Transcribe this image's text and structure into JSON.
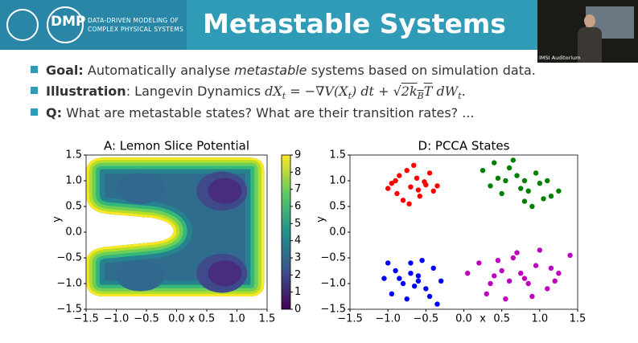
{
  "header": {
    "logo": "DMP",
    "subtitle_lines": [
      "DATA-DRIVEN MODELING OF",
      "COMPLEX PHYSICAL SYSTEMS"
    ],
    "title": "Metastable Systems"
  },
  "webcam": {
    "label": "IMSI Auditorium"
  },
  "bullets": [
    {
      "parts": [
        {
          "text": "Goal:",
          "style": "bold"
        },
        {
          "text": " Automatically analyse ",
          "style": "normal"
        },
        {
          "text": "metastable",
          "style": "italic"
        },
        {
          "text": " systems based on simulation data.",
          "style": "normal"
        }
      ]
    },
    {
      "parts": [
        {
          "text": "Illustration",
          "style": "bold"
        },
        {
          "text": ": Langevin Dynamics ",
          "style": "normal"
        },
        {
          "text": "dX",
          "style": "math"
        },
        {
          "text": "t",
          "style": "sub"
        },
        {
          "text": " = −∇V(X",
          "style": "math"
        },
        {
          "text": "t",
          "style": "sub"
        },
        {
          "text": ") dt + √",
          "style": "math"
        },
        {
          "text": "2k",
          "style": "math-over"
        },
        {
          "text": "B",
          "style": "sub-over"
        },
        {
          "text": "T",
          "style": "math-over"
        },
        {
          "text": " dW",
          "style": "math"
        },
        {
          "text": "t",
          "style": "sub"
        },
        {
          "text": ".",
          "style": "math"
        }
      ]
    },
    {
      "parts": [
        {
          "text": "Q:",
          "style": "bold"
        },
        {
          "text": " What are metastable states? What are their transition rates? ...",
          "style": "normal"
        }
      ]
    }
  ],
  "chart_data": [
    {
      "type": "contour",
      "title": "A: Lemon Slice Potential",
      "xlabel": "x",
      "ylabel": "y",
      "colormap": "viridis",
      "xlim": [
        -1.5,
        1.5
      ],
      "ylim": [
        -1.5,
        1.5
      ],
      "xticks": [
        {
          "value": -1.5,
          "label": "−1.5"
        },
        {
          "value": -1.0,
          "label": "−1.0"
        },
        {
          "value": -0.5,
          "label": "−0.5"
        },
        {
          "value": 0,
          "label": "0.0"
        },
        0.5,
        {
          "value": 1.0,
          "label": "1.0"
        },
        1.5
      ],
      "yticks": [
        {
          "value": -1.5,
          "label": "−1.5"
        },
        {
          "value": -1.0,
          "label": "−1.0"
        },
        {
          "value": -0.5,
          "label": "−0.5"
        },
        {
          "value": 0,
          "label": "0.0"
        },
        0.5,
        {
          "value": 1.0,
          "label": "1.0"
        },
        1.5
      ],
      "colorbar": {
        "lim": [
          0,
          9
        ],
        "ticks": [
          0,
          1,
          2,
          3,
          4,
          5,
          6,
          7,
          8,
          9
        ]
      }
    },
    {
      "type": "scatter",
      "title": "D: PCCA States",
      "xlabel": "x",
      "ylabel": "y",
      "xlim": [
        -1.5,
        1.5
      ],
      "ylim": [
        -1.5,
        1.5
      ],
      "xticks": [
        {
          "value": -1.5,
          "label": "−1.5"
        },
        {
          "value": -1.0,
          "label": "−1.0"
        },
        {
          "value": -0.5,
          "label": "−0.5"
        },
        {
          "value": 0,
          "label": "0.0"
        },
        0.5,
        {
          "value": 1.0,
          "label": "1.0"
        },
        1.5
      ],
      "yticks": [
        {
          "value": -1.5,
          "label": "−1.5"
        },
        {
          "value": -1.0,
          "label": "−1.0"
        },
        {
          "value": -0.5,
          "label": "−0.5"
        },
        {
          "value": 0,
          "label": "0.0"
        },
        0.5,
        {
          "value": 1.0,
          "label": "1.0"
        },
        1.5
      ],
      "series": [
        {
          "color": "#ff0000",
          "x": [
            -0.95,
            -0.85,
            -0.75,
            -0.62,
            -0.5,
            -0.4,
            -0.88,
            -0.7,
            -0.58,
            -0.45,
            -1.0,
            -0.8,
            -0.66,
            -0.52,
            -0.35,
            -0.72,
            -0.9,
            -0.6
          ],
          "y": [
            0.95,
            1.1,
            1.2,
            1.05,
            0.92,
            0.8,
            0.75,
            0.88,
            0.7,
            1.15,
            0.85,
            0.62,
            1.3,
            0.98,
            0.9,
            0.55,
            1.0,
            0.82
          ]
        },
        {
          "color": "#008000",
          "x": [
            0.25,
            0.4,
            0.55,
            0.7,
            0.85,
            1.0,
            1.15,
            0.35,
            0.6,
            0.8,
            0.95,
            1.1,
            0.5,
            0.75,
            0.9,
            1.25,
            0.65,
            0.45,
            1.05,
            0.8
          ],
          "y": [
            1.2,
            1.35,
            1.0,
            1.1,
            0.8,
            0.95,
            0.7,
            0.9,
            1.25,
            0.6,
            1.15,
            1.0,
            0.75,
            0.85,
            0.5,
            0.8,
            1.4,
            1.05,
            0.65,
            1.0
          ]
        },
        {
          "color": "#0000ff",
          "x": [
            -1.05,
            -0.9,
            -0.8,
            -0.7,
            -0.6,
            -0.5,
            -0.4,
            -0.3,
            -0.95,
            -0.75,
            -0.65,
            -0.55,
            -0.85,
            -0.45,
            -0.7,
            -0.35,
            -0.6,
            -1.0
          ],
          "y": [
            -0.9,
            -0.75,
            -1.0,
            -0.6,
            -0.85,
            -1.1,
            -0.7,
            -0.95,
            -1.2,
            -1.3,
            -1.05,
            -0.55,
            -0.9,
            -1.25,
            -0.8,
            -1.4,
            -0.95,
            -0.6
          ]
        },
        {
          "color": "#bf00bf",
          "x": [
            0.05,
            0.2,
            0.35,
            0.5,
            0.65,
            0.8,
            0.95,
            1.1,
            1.25,
            1.4,
            0.3,
            0.55,
            0.7,
            0.85,
            1.0,
            1.15,
            0.45,
            0.75,
            0.9,
            0.6,
            1.2,
            0.4
          ],
          "y": [
            -0.8,
            -0.6,
            -1.0,
            -0.75,
            -0.5,
            -0.9,
            -0.65,
            -1.1,
            -0.8,
            -0.45,
            -1.2,
            -1.3,
            -0.4,
            -1.0,
            -0.35,
            -0.7,
            -0.55,
            -0.8,
            -1.25,
            -0.95,
            -0.95,
            -0.85
          ]
        }
      ]
    }
  ]
}
